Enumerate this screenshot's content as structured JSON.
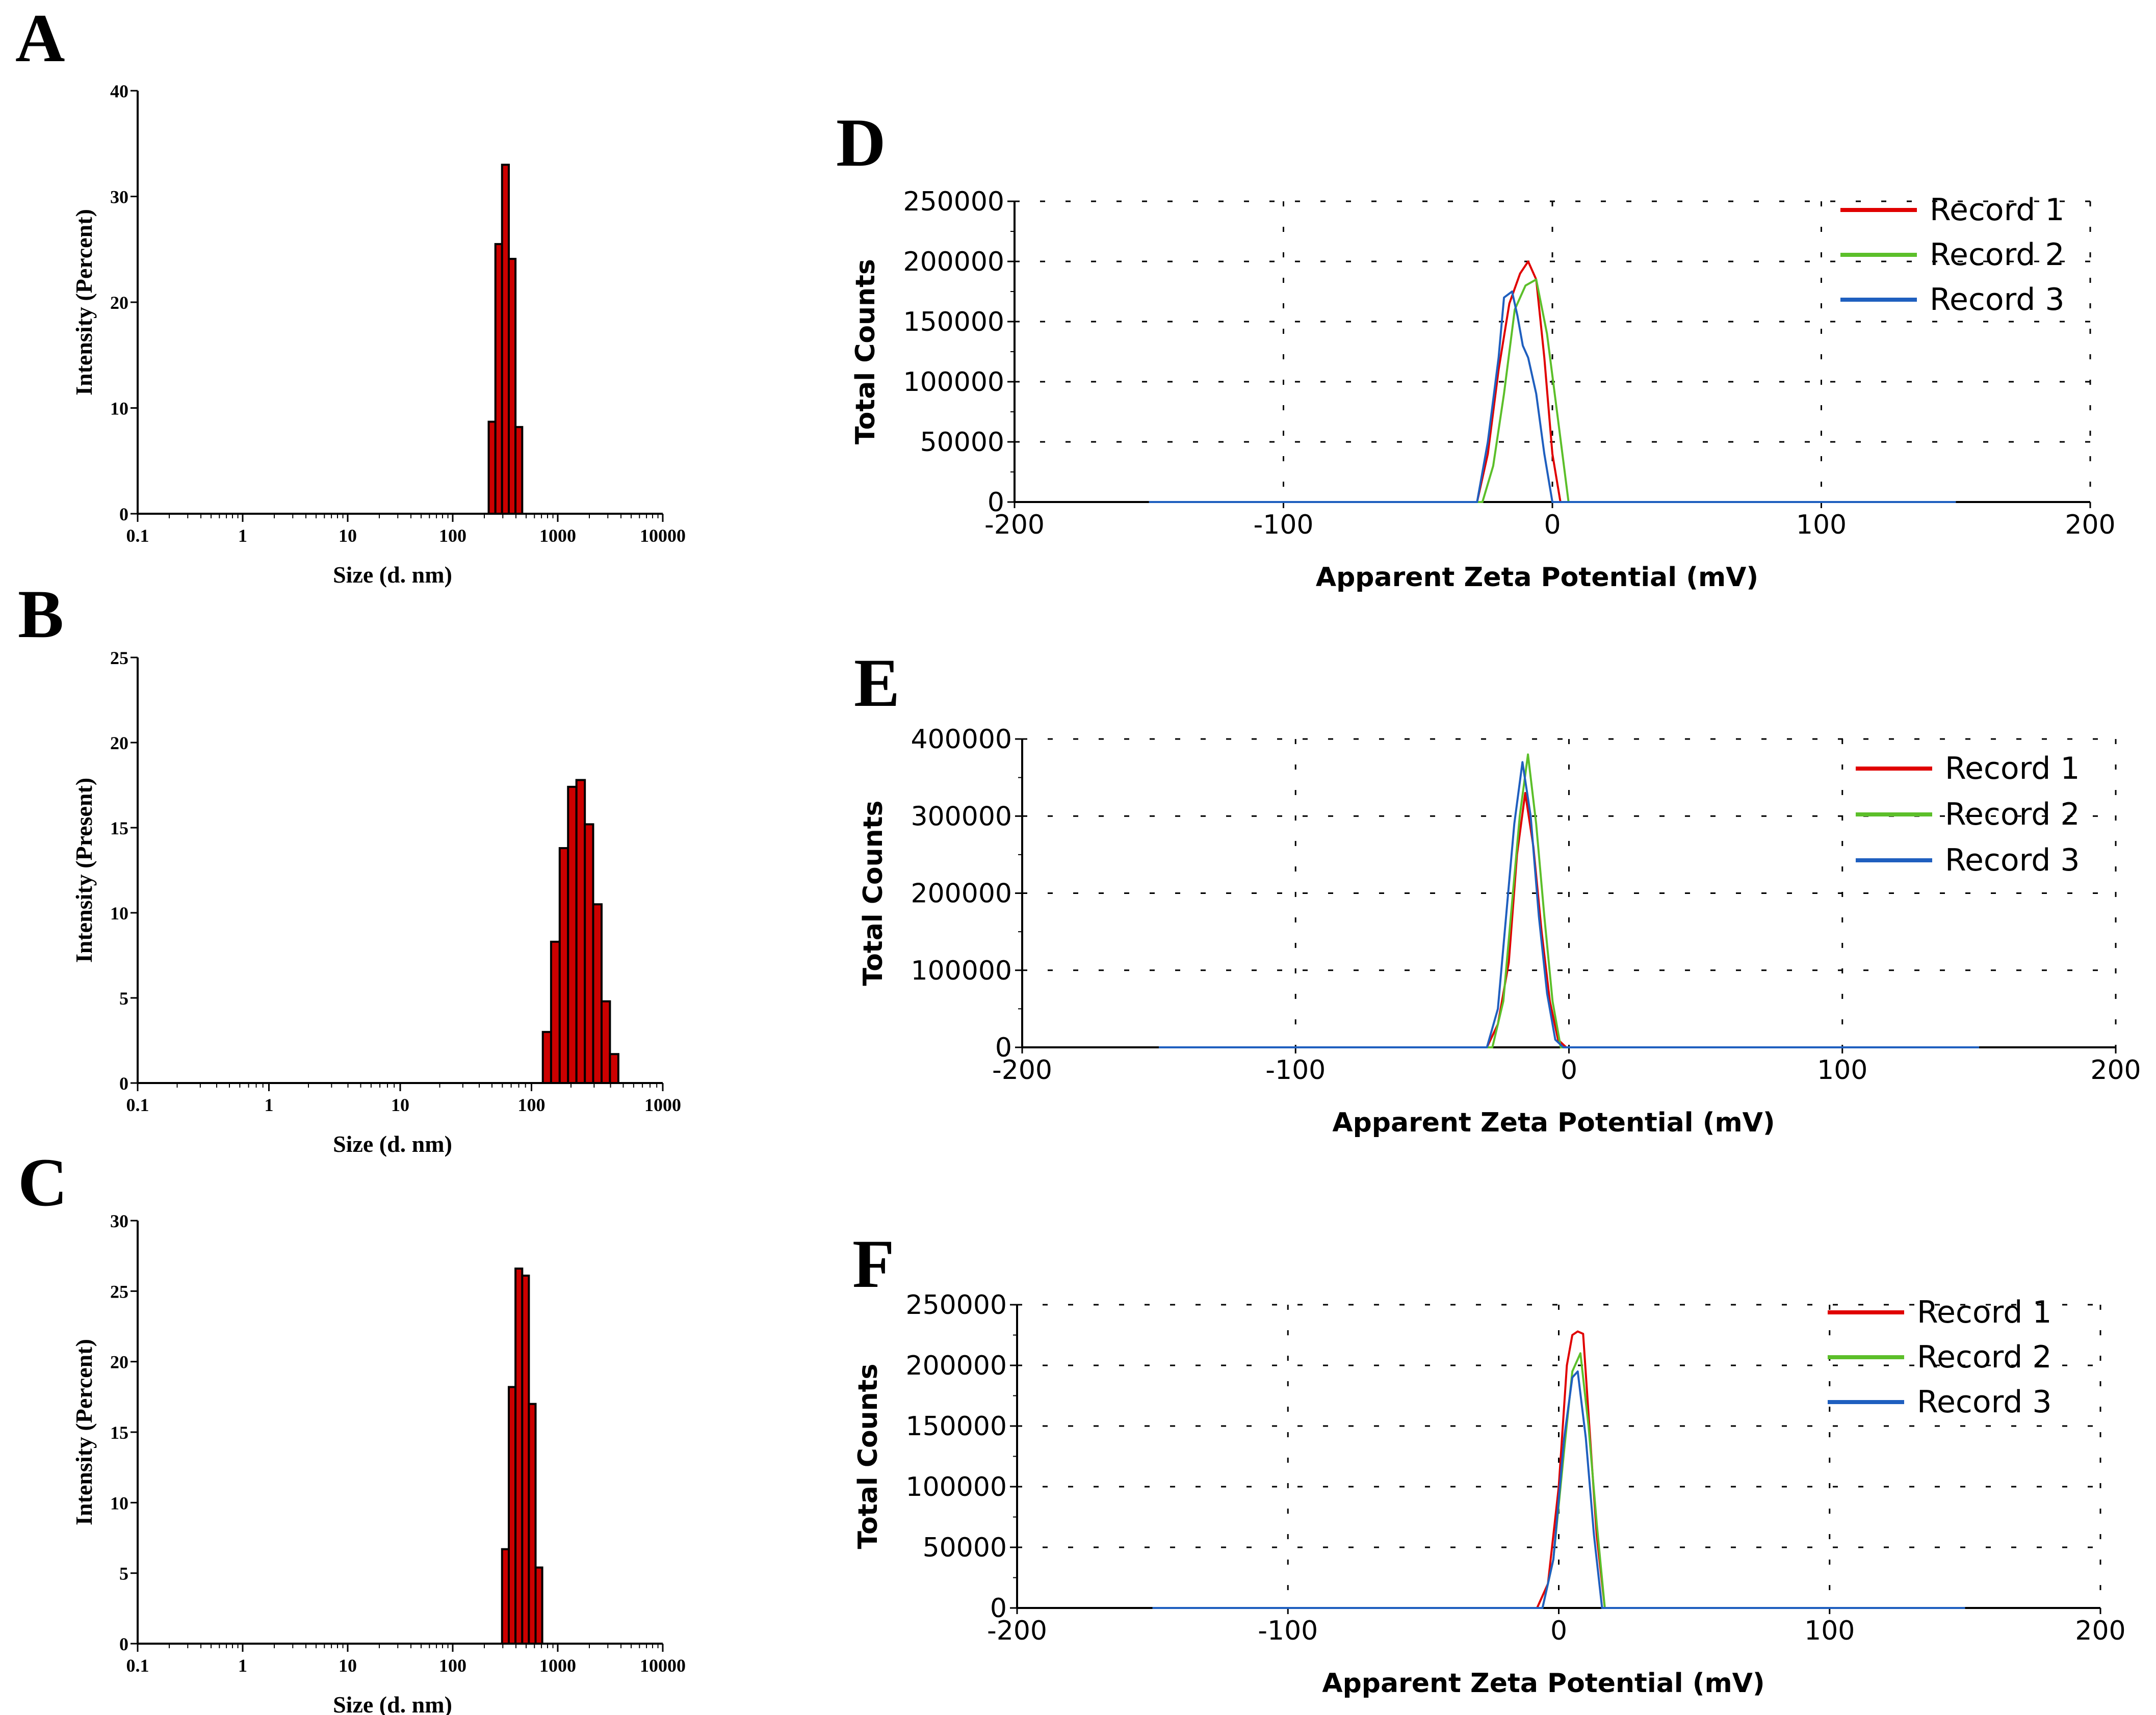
{
  "figure": {
    "panel_letters": [
      "A",
      "B",
      "C",
      "D",
      "E",
      "F"
    ]
  },
  "colors": {
    "bar_fill": "#cc0000",
    "bar_edge": "#000000",
    "record_1": "#e00000",
    "record_2": "#5cbf2a",
    "record_3": "#1f5fbf",
    "grid": "#000000"
  },
  "chart_data": [
    {
      "panel": "A",
      "type": "bar",
      "xscale": "log",
      "xlim": [
        0.1,
        10000
      ],
      "ylim": [
        0,
        40
      ],
      "xlabel": "Size (d. nm)",
      "ylabel": "Intensity (Percent)",
      "xticks": [
        0.1,
        1,
        10,
        100,
        1000,
        10000
      ],
      "xtick_labels": [
        "0.1",
        "1",
        "10",
        "100",
        "1000",
        "10000"
      ],
      "yticks": [
        0,
        10,
        20,
        30,
        40
      ],
      "ytick_labels": [
        "0",
        "10",
        "20",
        "30",
        "40"
      ],
      "bins": [
        {
          "from": 220,
          "to": 255,
          "value": 8.7
        },
        {
          "from": 255,
          "to": 295,
          "value": 25.5
        },
        {
          "from": 295,
          "to": 342,
          "value": 33.0
        },
        {
          "from": 342,
          "to": 396,
          "value": 24.1
        },
        {
          "from": 396,
          "to": 459,
          "value": 8.2
        }
      ]
    },
    {
      "panel": "B",
      "type": "bar",
      "xscale": "log",
      "xlim": [
        0.1,
        1000
      ],
      "ylim": [
        0,
        25
      ],
      "xlabel": "Size (d. nm)",
      "ylabel": "Intensity (Present)",
      "xticks": [
        0.1,
        1,
        10,
        100,
        1000
      ],
      "xtick_labels": [
        "0.1",
        "1",
        "10",
        "100",
        "1000"
      ],
      "yticks": [
        0,
        5,
        10,
        15,
        20,
        25
      ],
      "ytick_labels": [
        "0",
        "5",
        "10",
        "15",
        "20",
        "25"
      ],
      "bins": [
        {
          "from": 122,
          "to": 141,
          "value": 3.0
        },
        {
          "from": 141,
          "to": 164,
          "value": 8.3
        },
        {
          "from": 164,
          "to": 190,
          "value": 13.8
        },
        {
          "from": 190,
          "to": 220,
          "value": 17.4
        },
        {
          "from": 220,
          "to": 255,
          "value": 17.8
        },
        {
          "from": 255,
          "to": 295,
          "value": 15.2
        },
        {
          "from": 295,
          "to": 342,
          "value": 10.5
        },
        {
          "from": 342,
          "to": 396,
          "value": 4.8
        },
        {
          "from": 396,
          "to": 459,
          "value": 1.7
        }
      ]
    },
    {
      "panel": "C",
      "type": "bar",
      "xscale": "log",
      "xlim": [
        0.1,
        10000
      ],
      "ylim": [
        0,
        30
      ],
      "xlabel": "Size (d. nm)",
      "ylabel": "Intensity (Percent)",
      "xticks": [
        0.1,
        1,
        10,
        100,
        1000,
        10000
      ],
      "xtick_labels": [
        "0.1",
        "1",
        "10",
        "100",
        "1000",
        "10000"
      ],
      "yticks": [
        0,
        5,
        10,
        15,
        20,
        25,
        30
      ],
      "ytick_labels": [
        "0",
        "5",
        "10",
        "15",
        "20",
        "25",
        "30"
      ],
      "bins": [
        {
          "from": 295,
          "to": 342,
          "value": 6.7
        },
        {
          "from": 342,
          "to": 396,
          "value": 18.2
        },
        {
          "from": 396,
          "to": 459,
          "value": 26.6
        },
        {
          "from": 459,
          "to": 531,
          "value": 26.1
        },
        {
          "from": 531,
          "to": 615,
          "value": 17.0
        },
        {
          "from": 615,
          "to": 712,
          "value": 5.4
        }
      ]
    },
    {
      "panel": "D",
      "type": "line",
      "xlim": [
        -200,
        200
      ],
      "ylim": [
        0,
        250000
      ],
      "xlabel": "Apparent Zeta Potential (mV)",
      "ylabel": "Total Counts",
      "xticks": [
        -200,
        -100,
        0,
        100,
        200
      ],
      "xtick_labels": [
        "-200",
        "-100",
        "0",
        "100",
        "200"
      ],
      "yticks": [
        0,
        50000,
        100000,
        150000,
        200000,
        250000
      ],
      "ytick_labels": [
        "0",
        "50000",
        "100000",
        "150000",
        "200000",
        "250000"
      ],
      "legend": [
        "Record 1",
        "Record 2",
        "Record 3"
      ],
      "series": [
        {
          "name": "Record 1",
          "x": [
            -150,
            -28,
            -24,
            -20,
            -16,
            -12,
            -9,
            -6,
            -3,
            0,
            3,
            150
          ],
          "y": [
            0,
            0,
            40000,
            110000,
            165000,
            190000,
            200000,
            185000,
            120000,
            40000,
            0,
            0
          ]
        },
        {
          "name": "Record 2",
          "x": [
            -150,
            -26,
            -22,
            -18,
            -14,
            -10,
            -6,
            -2,
            2,
            6,
            150
          ],
          "y": [
            0,
            0,
            30000,
            90000,
            160000,
            180000,
            185000,
            140000,
            70000,
            0,
            0
          ]
        },
        {
          "name": "Record 3",
          "x": [
            -150,
            -28,
            -24,
            -20,
            -18,
            -15,
            -13,
            -11,
            -9,
            -6,
            -3,
            0,
            150
          ],
          "y": [
            0,
            0,
            50000,
            120000,
            170000,
            175000,
            155000,
            130000,
            120000,
            90000,
            40000,
            0,
            0
          ]
        }
      ]
    },
    {
      "panel": "E",
      "type": "line",
      "xlim": [
        -200,
        200
      ],
      "ylim": [
        0,
        400000
      ],
      "xlabel": "Apparent Zeta Potential (mV)",
      "ylabel": "Total Counts",
      "xticks": [
        -200,
        -100,
        0,
        100,
        200
      ],
      "xtick_labels": [
        "-200",
        "-100",
        "0",
        "100",
        "200"
      ],
      "yticks": [
        0,
        100000,
        200000,
        300000,
        400000
      ],
      "ytick_labels": [
        "0",
        "100000",
        "200000",
        "300000",
        "400000"
      ],
      "legend": [
        "Record 1",
        "Record 2",
        "Record 3"
      ],
      "series": [
        {
          "name": "Record 1",
          "x": [
            -150,
            -30,
            -26,
            -22,
            -19,
            -16,
            -13,
            -10,
            -7,
            -4,
            -1,
            150
          ],
          "y": [
            0,
            0,
            30000,
            110000,
            250000,
            330000,
            260000,
            150000,
            60000,
            10000,
            0,
            0
          ]
        },
        {
          "name": "Record 2",
          "x": [
            -150,
            -28,
            -24,
            -21,
            -18,
            -15,
            -12,
            -9,
            -6,
            -3,
            150
          ],
          "y": [
            0,
            0,
            60000,
            180000,
            300000,
            380000,
            290000,
            170000,
            60000,
            0,
            0
          ]
        },
        {
          "name": "Record 3",
          "x": [
            -150,
            -30,
            -26,
            -23,
            -20,
            -17,
            -14,
            -11,
            -8,
            -5,
            -2,
            150
          ],
          "y": [
            0,
            0,
            50000,
            170000,
            290000,
            370000,
            300000,
            170000,
            70000,
            10000,
            0,
            0
          ]
        }
      ]
    },
    {
      "panel": "F",
      "type": "line",
      "xlim": [
        -200,
        200
      ],
      "ylim": [
        0,
        250000
      ],
      "xlabel": "Apparent Zeta Potential (mV)",
      "ylabel": "Total Counts",
      "xticks": [
        -200,
        -100,
        0,
        100,
        200
      ],
      "xtick_labels": [
        "-200",
        "-100",
        "0",
        "100",
        "200"
      ],
      "yticks": [
        0,
        50000,
        100000,
        150000,
        200000,
        250000
      ],
      "ytick_labels": [
        "0",
        "50000",
        "100000",
        "150000",
        "200000",
        "250000"
      ],
      "legend": [
        "Record 1",
        "Record 2",
        "Record 3"
      ],
      "series": [
        {
          "name": "Record 1",
          "x": [
            -150,
            -8,
            -4,
            0,
            3,
            5,
            7,
            9,
            11,
            14,
            17,
            150
          ],
          "y": [
            0,
            0,
            20000,
            100000,
            200000,
            225000,
            228000,
            226000,
            160000,
            60000,
            0,
            0
          ]
        },
        {
          "name": "Record 2",
          "x": [
            -150,
            -6,
            -2,
            2,
            5,
            8,
            11,
            14,
            17,
            150
          ],
          "y": [
            0,
            0,
            40000,
            130000,
            195000,
            210000,
            150000,
            70000,
            0,
            0
          ]
        },
        {
          "name": "Record 3",
          "x": [
            -150,
            -6,
            -2,
            2,
            5,
            7,
            10,
            13,
            16,
            150
          ],
          "y": [
            0,
            0,
            40000,
            140000,
            190000,
            195000,
            140000,
            60000,
            0,
            0
          ]
        }
      ]
    }
  ]
}
